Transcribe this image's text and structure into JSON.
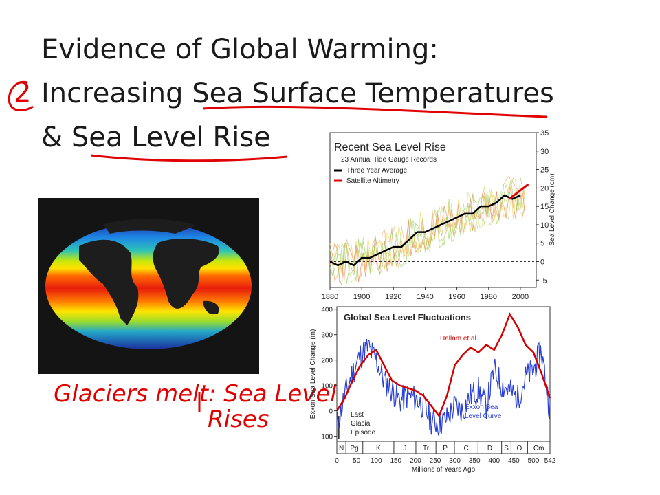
{
  "slide": {
    "title_lines": [
      "Evidence of Global Warming:",
      "Increasing Sea Surface Temperatures",
      "& Sea Level Rise"
    ],
    "annotation_numeral": "2",
    "handwritten_note_line1": "Glaciers melt: Sea Level",
    "handwritten_note_line2": "Rises"
  },
  "colors": {
    "ink": "#e00000",
    "text": "#1a1a1a",
    "three_year_avg": "#000000",
    "satellite": "#e00000",
    "hallam": "#d40000",
    "exxon": "#2a3fd6"
  },
  "chart_data": [
    {
      "type": "line",
      "title": "Recent Sea Level Rise",
      "subtitle": "23 Annual Tide Gauge Records",
      "ylabel": "Sea Level Change (cm)",
      "xlim": [
        1880,
        2010
      ],
      "ylim": [
        -7,
        35
      ],
      "xticks": [
        1880,
        1900,
        1920,
        1940,
        1960,
        1980,
        2000
      ],
      "yticks": [
        -5,
        0,
        5,
        10,
        15,
        20,
        25,
        30,
        35
      ],
      "series": [
        {
          "name": "Three Year Average",
          "x": [
            1880,
            1885,
            1890,
            1895,
            1900,
            1905,
            1910,
            1915,
            1920,
            1925,
            1930,
            1935,
            1940,
            1945,
            1950,
            1955,
            1960,
            1965,
            1970,
            1975,
            1980,
            1985,
            1990,
            1995,
            2000
          ],
          "y": [
            0,
            -1,
            0,
            -1,
            1,
            1,
            2,
            3,
            4,
            4,
            6,
            8,
            8,
            9,
            10,
            11,
            12,
            13,
            13,
            15,
            15,
            16,
            18,
            17,
            18
          ]
        },
        {
          "name": "Satellite Altimetry",
          "x": [
            1993,
            1996,
            1999,
            2002,
            2005
          ],
          "y": [
            17,
            18,
            19,
            20,
            21
          ]
        }
      ]
    },
    {
      "type": "line",
      "title": "Global Sea Level Fluctuations",
      "ylabel": "Exxon Sea Level Change (m)",
      "xlabel": "Millions of Years Ago",
      "xlim": [
        0,
        542
      ],
      "ylim": [
        -120,
        410
      ],
      "xticks": [
        0,
        50,
        100,
        150,
        200,
        250,
        300,
        350,
        400,
        450,
        500,
        542
      ],
      "yticks": [
        -100,
        0,
        100,
        200,
        300,
        400
      ],
      "periods": [
        "N",
        "Pg",
        "K",
        "J",
        "Tr",
        "P",
        "C",
        "D",
        "S",
        "O",
        "Cm"
      ],
      "annotations": [
        "Last Glacial Episode"
      ],
      "series": [
        {
          "name": "Hallam et al.",
          "x": [
            0,
            20,
            40,
            60,
            80,
            100,
            120,
            140,
            160,
            180,
            200,
            220,
            240,
            260,
            280,
            300,
            320,
            340,
            360,
            380,
            400,
            420,
            440,
            460,
            480,
            500,
            520,
            542
          ],
          "y": [
            0,
            50,
            120,
            180,
            220,
            240,
            180,
            120,
            100,
            90,
            80,
            60,
            20,
            -20,
            60,
            180,
            220,
            250,
            230,
            260,
            240,
            300,
            380,
            330,
            260,
            230,
            150,
            50
          ]
        },
        {
          "name": "Exxon Sea Level Curve",
          "x": [
            0,
            20,
            40,
            60,
            80,
            100,
            120,
            140,
            160,
            180,
            200,
            220,
            240,
            260,
            280,
            300,
            320,
            340,
            360,
            380,
            400,
            420,
            440,
            460,
            480,
            500,
            520,
            542
          ],
          "y": [
            -60,
            60,
            150,
            220,
            250,
            200,
            120,
            80,
            40,
            60,
            50,
            20,
            -40,
            -50,
            -30,
            20,
            0,
            60,
            80,
            20,
            160,
            100,
            80,
            50,
            130,
            160,
            240,
            0
          ]
        }
      ]
    }
  ]
}
